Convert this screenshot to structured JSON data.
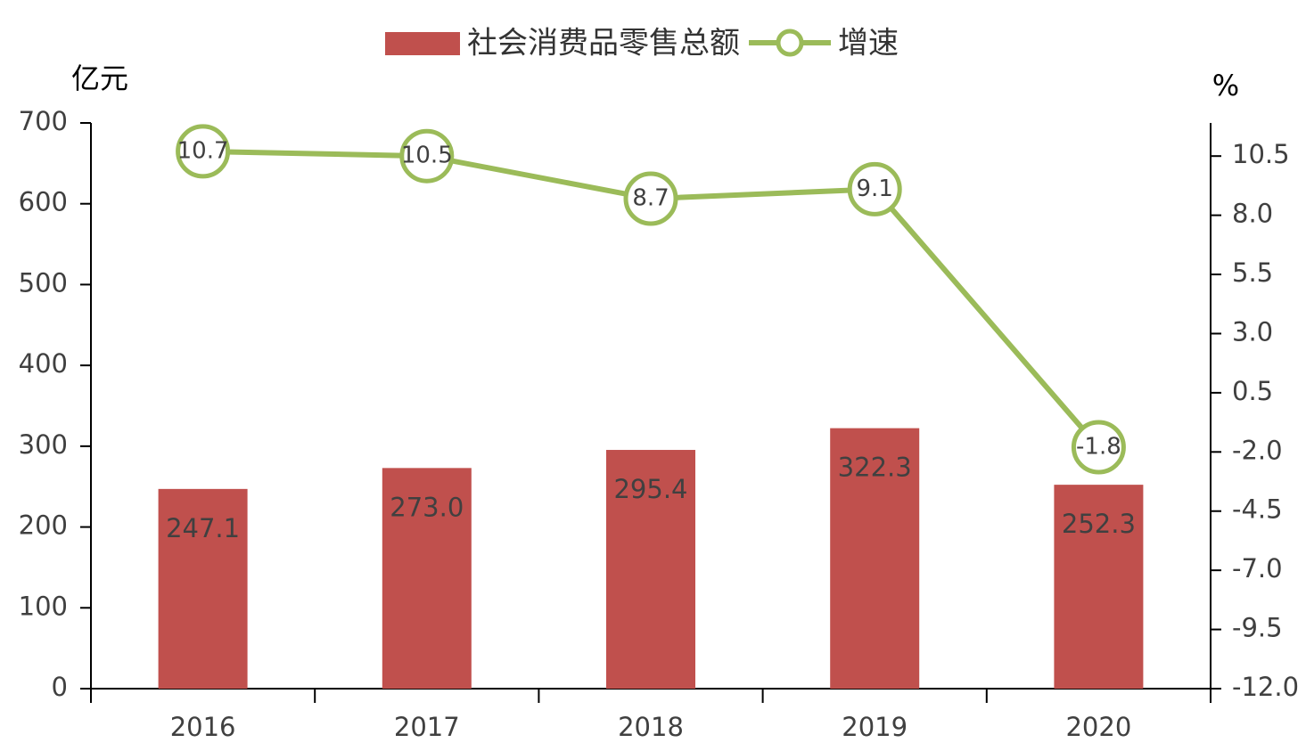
{
  "chart_data": {
    "type": "bar-line",
    "categories": [
      "2016",
      "2017",
      "2018",
      "2019",
      "2020"
    ],
    "y_label": "亿元",
    "y2_label": "%",
    "series": [
      {
        "name": "社会消费品零售总额",
        "type": "bar",
        "color": "#c0504d",
        "values": [
          247.1,
          273,
          295.4,
          322.3,
          252.3
        ],
        "value_labels": [
          "247.1",
          "273.0",
          "295.4",
          "322.3",
          "252.3"
        ]
      },
      {
        "name": "增速",
        "type": "line",
        "axis": "y2",
        "color": "#9bbb59",
        "values": [
          10.7,
          10.5,
          8.7,
          9.1,
          -1.8
        ]
      }
    ],
    "ylim": [
      0,
      700
    ],
    "yticks": [
      0,
      100,
      200,
      300,
      400,
      500,
      600,
      700
    ],
    "y2lim": [
      -12,
      11.9
    ],
    "y2ticks": [
      {
        "value": -12,
        "label": "-12.0"
      },
      -9.5,
      {
        "value": -7,
        "label": "-7.0"
      },
      -4.5,
      {
        "value": -2,
        "label": "-2.0"
      },
      0.5,
      {
        "value": 3,
        "label": "3.0"
      },
      5.5,
      {
        "value": 8,
        "label": "8.0"
      },
      10.5
    ],
    "legend": "top"
  }
}
